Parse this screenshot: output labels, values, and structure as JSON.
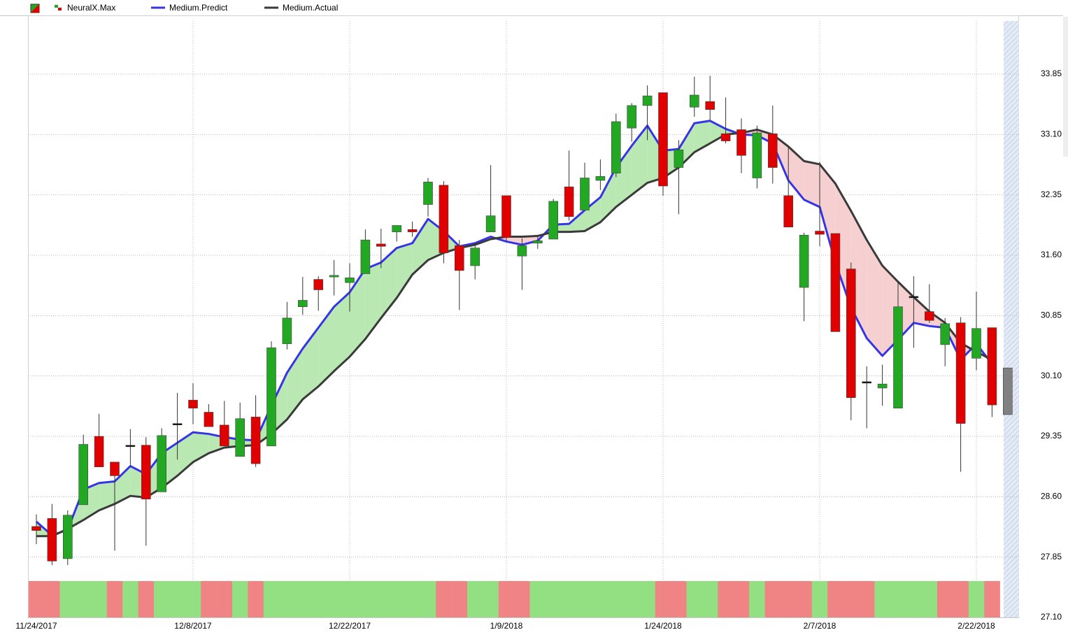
{
  "chart_data": {
    "type": "candlestick",
    "categories": [
      "11/24/2017",
      null,
      null,
      null,
      null,
      null,
      null,
      null,
      null,
      null,
      "12/8/2017",
      null,
      null,
      null,
      null,
      null,
      null,
      null,
      null,
      null,
      "12/22/2017",
      null,
      null,
      null,
      null,
      null,
      null,
      null,
      null,
      null,
      "1/9/2018",
      null,
      null,
      null,
      null,
      null,
      null,
      null,
      null,
      null,
      "1/24/2018",
      null,
      null,
      null,
      null,
      null,
      null,
      null,
      null,
      null,
      "2/7/2018",
      null,
      null,
      null,
      null,
      null,
      null,
      null,
      null,
      null,
      "2/22/2018",
      null,
      null
    ],
    "series": [
      {
        "name": "NeuralX.Max",
        "type": "candlestick",
        "open": [
          28.23,
          28.33,
          27.83,
          28.5,
          29.35,
          29.03,
          29.23,
          29.24,
          28.66,
          29.5,
          29.8,
          29.65,
          29.49,
          29.1,
          29.59,
          29.23,
          30.5,
          30.96,
          31.3,
          31.33,
          31.26,
          31.37,
          31.74,
          31.89,
          31.92,
          32.23,
          32.47,
          31.72,
          31.47,
          31.89,
          32.34,
          31.59,
          31.75,
          31.8,
          32.45,
          32.16,
          32.53,
          32.62,
          33.18,
          33.46,
          33.62,
          32.69,
          33.44,
          33.51,
          33.11,
          33.16,
          32.56,
          33.11,
          32.34,
          31.2,
          31.9,
          31.87,
          31.43,
          30.02,
          29.95,
          29.7,
          31.08,
          30.9,
          30.49,
          30.76,
          30.32,
          30.7,
          30.2
        ],
        "high": [
          28.38,
          28.51,
          28.43,
          29.37,
          29.63,
          29.03,
          29.44,
          29.34,
          29.45,
          29.89,
          30.01,
          29.75,
          29.79,
          29.77,
          29.86,
          30.53,
          31.02,
          31.33,
          31.34,
          31.54,
          31.5,
          31.92,
          31.93,
          31.97,
          32.02,
          32.56,
          32.52,
          31.79,
          31.75,
          32.72,
          32.34,
          31.81,
          31.85,
          32.3,
          32.9,
          32.75,
          32.79,
          33.36,
          33.49,
          33.71,
          33.62,
          33.03,
          33.82,
          33.83,
          33.56,
          33.3,
          33.21,
          33.46,
          32.95,
          31.88,
          32.76,
          31.87,
          31.51,
          30.22,
          30.24,
          31.26,
          31.34,
          31.24,
          30.82,
          30.83,
          31.15,
          30.7,
          30.2
        ],
        "low": [
          28.01,
          27.75,
          27.75,
          28.5,
          28.97,
          27.93,
          28.97,
          27.99,
          28.66,
          29.06,
          29.5,
          29.47,
          29.23,
          29.1,
          28.97,
          29.23,
          30.43,
          30.86,
          30.91,
          31.1,
          30.9,
          31.37,
          31.44,
          31.77,
          31.83,
          32.08,
          31.5,
          30.92,
          31.3,
          31.89,
          31.77,
          31.17,
          31.68,
          31.8,
          32.03,
          32.16,
          32.41,
          32.57,
          33.01,
          33.03,
          32.34,
          32.11,
          33.32,
          33.28,
          32.99,
          32.62,
          32.43,
          32.49,
          31.95,
          30.78,
          31.71,
          30.65,
          29.55,
          29.45,
          29.73,
          29.7,
          30.45,
          30.76,
          30.22,
          28.91,
          30.17,
          29.59,
          29.62
        ],
        "close": [
          28.18,
          27.8,
          28.37,
          29.25,
          28.97,
          28.86,
          29.23,
          28.57,
          29.36,
          29.5,
          29.7,
          29.47,
          29.23,
          29.57,
          29.01,
          30.45,
          30.82,
          31.04,
          31.17,
          31.35,
          31.32,
          31.79,
          31.71,
          31.97,
          31.89,
          32.51,
          31.63,
          31.41,
          31.69,
          32.09,
          31.82,
          31.72,
          31.78,
          32.27,
          32.08,
          32.56,
          32.58,
          33.26,
          33.46,
          33.58,
          32.46,
          32.91,
          33.59,
          33.41,
          33.02,
          32.84,
          33.12,
          32.69,
          31.95,
          31.85,
          31.86,
          30.65,
          29.83,
          30.02,
          30.0,
          30.96,
          31.08,
          30.79,
          30.75,
          29.51,
          30.69,
          29.74,
          29.62
        ],
        "colors": [
          "#e00000",
          "#e00000",
          "#22a822",
          "#22a822",
          "#e00000",
          "#e00000",
          "#000000",
          "#e00000",
          "#22a822",
          "#000000",
          "#e00000",
          "#e00000",
          "#e00000",
          "#22a822",
          "#e00000",
          "#22a822",
          "#22a822",
          "#22a822",
          "#e00000",
          "#22a822",
          "#22a822",
          "#22a822",
          "#e00000",
          "#22a822",
          "#e00000",
          "#22a822",
          "#e00000",
          "#e00000",
          "#22a822",
          "#22a822",
          "#e00000",
          "#22a822",
          "#22a822",
          "#22a822",
          "#e00000",
          "#22a822",
          "#22a822",
          "#22a822",
          "#22a822",
          "#22a822",
          "#e00000",
          "#22a822",
          "#22a822",
          "#e00000",
          "#e00000",
          "#e00000",
          "#22a822",
          "#e00000",
          "#e00000",
          "#22a822",
          "#e00000",
          "#e00000",
          "#e00000",
          "#000000",
          "#22a822",
          "#22a822",
          "#000000",
          "#e00000",
          "#22a822",
          "#e00000",
          "#22a822",
          "#e00000",
          "#808080"
        ]
      },
      {
        "name": "Medium.Predict",
        "type": "line",
        "color": "#3535e8",
        "values": [
          28.29,
          28.12,
          28.19,
          28.69,
          28.77,
          28.79,
          28.98,
          28.88,
          29.14,
          29.27,
          29.4,
          29.38,
          29.34,
          29.31,
          29.3,
          29.73,
          30.14,
          30.44,
          30.7,
          30.96,
          31.14,
          31.43,
          31.51,
          31.69,
          31.75,
          32.05,
          31.9,
          31.71,
          31.75,
          31.83,
          31.77,
          31.73,
          31.78,
          31.98,
          31.99,
          32.16,
          32.32,
          32.69,
          32.96,
          33.21,
          32.9,
          32.92,
          33.24,
          33.27,
          33.17,
          33.1,
          33.09,
          32.99,
          32.53,
          32.29,
          32.2,
          31.51,
          30.95,
          30.57,
          30.35,
          30.55,
          30.76,
          30.72,
          30.7,
          30.3,
          30.5,
          30.25,
          null
        ]
      },
      {
        "name": "Medium.Actual",
        "type": "line",
        "color": "#3a3a3a",
        "values": [
          28.11,
          28.11,
          28.2,
          28.31,
          28.43,
          28.51,
          28.61,
          28.59,
          28.71,
          28.86,
          29.03,
          29.14,
          29.21,
          29.23,
          29.24,
          29.38,
          29.56,
          29.81,
          29.97,
          30.16,
          30.34,
          30.56,
          30.82,
          31.07,
          31.36,
          31.54,
          31.63,
          31.69,
          31.73,
          31.8,
          31.83,
          31.83,
          31.84,
          31.89,
          31.89,
          31.9,
          32.01,
          32.2,
          32.35,
          32.5,
          32.56,
          32.69,
          32.88,
          32.99,
          33.1,
          33.12,
          33.16,
          33.1,
          32.95,
          32.77,
          32.73,
          32.49,
          32.15,
          31.79,
          31.47,
          31.27,
          31.08,
          30.9,
          30.76,
          30.51,
          30.4,
          30.3,
          null
        ]
      }
    ],
    "fill_colors": {
      "above": "#b9e8b2",
      "below": "#f6d0d0"
    },
    "band_colors": [
      "#f08484",
      "#f08484",
      "#93e083",
      "#93e083",
      "#93e083",
      "#f08484",
      "#93e083",
      "#f08484",
      "#93e083",
      "#93e083",
      "#93e083",
      "#f08484",
      "#f08484",
      "#93e083",
      "#f08484",
      "#93e083",
      "#93e083",
      "#93e083",
      "#93e083",
      "#93e083",
      "#93e083",
      "#93e083",
      "#93e083",
      "#93e083",
      "#93e083",
      "#93e083",
      "#f08484",
      "#f08484",
      "#93e083",
      "#93e083",
      "#f08484",
      "#f08484",
      "#93e083",
      "#93e083",
      "#93e083",
      "#93e083",
      "#93e083",
      "#93e083",
      "#93e083",
      "#93e083",
      "#f08484",
      "#f08484",
      "#93e083",
      "#93e083",
      "#f08484",
      "#f08484",
      "#93e083",
      "#f08484",
      "#f08484",
      "#f08484",
      "#93e083",
      "#f08484",
      "#f08484",
      "#f08484",
      "#93e083",
      "#93e083",
      "#93e083",
      "#93e083",
      "#f08484",
      "#f08484",
      "#93e083",
      "#f08484"
    ],
    "ylim": [
      27.1,
      34.58
    ],
    "yticks": [
      {
        "value": 27.1,
        "label": "27.10"
      },
      27.85,
      {
        "value": 28.6,
        "label": "28.60"
      },
      29.35,
      {
        "value": 30.1,
        "label": "30.10"
      },
      30.85,
      {
        "value": 31.6,
        "label": "31.60"
      },
      32.35,
      {
        "value": 33.1,
        "label": "33.10"
      },
      33.85
    ],
    "grid": true,
    "legend": "top-left"
  }
}
